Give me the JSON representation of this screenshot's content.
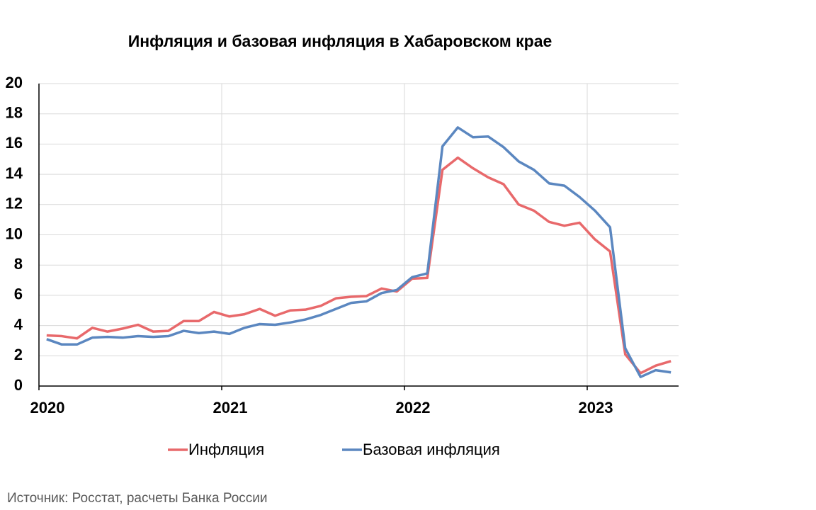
{
  "chart_data": {
    "type": "line",
    "title": "Инфляция и базовая инфляция в Хабаровском крае",
    "source": "Источник: Росстат, расчеты Банка России",
    "x": [
      2020.042,
      2020.125,
      2020.208,
      2020.292,
      2020.375,
      2020.458,
      2020.542,
      2020.625,
      2020.708,
      2020.792,
      2020.875,
      2020.958,
      2021.042,
      2021.125,
      2021.208,
      2021.292,
      2021.375,
      2021.458,
      2021.542,
      2021.625,
      2021.708,
      2021.792,
      2021.875,
      2021.958,
      2022.042,
      2022.125,
      2022.208,
      2022.292,
      2022.375,
      2022.458,
      2022.542,
      2022.625,
      2022.708,
      2022.792,
      2022.875,
      2022.958,
      2023.042,
      2023.125,
      2023.208,
      2023.292,
      2023.375,
      2023.458
    ],
    "series": [
      {
        "name": "Инфляция",
        "color": "#e8696b",
        "values": [
          3.35,
          3.3,
          3.15,
          3.85,
          3.6,
          3.8,
          4.05,
          3.6,
          3.65,
          4.3,
          4.3,
          4.9,
          4.6,
          4.75,
          5.1,
          4.65,
          5.0,
          5.05,
          5.3,
          5.8,
          5.9,
          5.95,
          6.45,
          6.25,
          7.1,
          7.15,
          14.3,
          15.1,
          14.4,
          13.8,
          13.35,
          12.0,
          11.6,
          10.85,
          10.6,
          10.8,
          9.7,
          8.9,
          2.1,
          0.85,
          1.35,
          1.65
        ]
      },
      {
        "name": "Базовая инфляция",
        "color": "#5b87c0",
        "values": [
          3.1,
          2.75,
          2.75,
          3.2,
          3.25,
          3.2,
          3.3,
          3.25,
          3.3,
          3.65,
          3.5,
          3.6,
          3.45,
          3.85,
          4.1,
          4.05,
          4.2,
          4.4,
          4.7,
          5.1,
          5.5,
          5.6,
          6.15,
          6.35,
          7.2,
          7.45,
          15.85,
          17.1,
          16.45,
          16.5,
          15.8,
          14.85,
          14.3,
          13.4,
          13.25,
          12.5,
          11.6,
          10.5,
          2.5,
          0.6,
          1.05,
          0.9
        ]
      }
    ],
    "xlim": [
      2020,
      2023.5
    ],
    "xticks": [
      2020,
      2021,
      2022,
      2023
    ],
    "ylim": [
      0,
      20
    ],
    "yticks": [
      0,
      2,
      4,
      6,
      8,
      10,
      12,
      14,
      16,
      18,
      20
    ],
    "grid": true,
    "legend": "bottom"
  }
}
